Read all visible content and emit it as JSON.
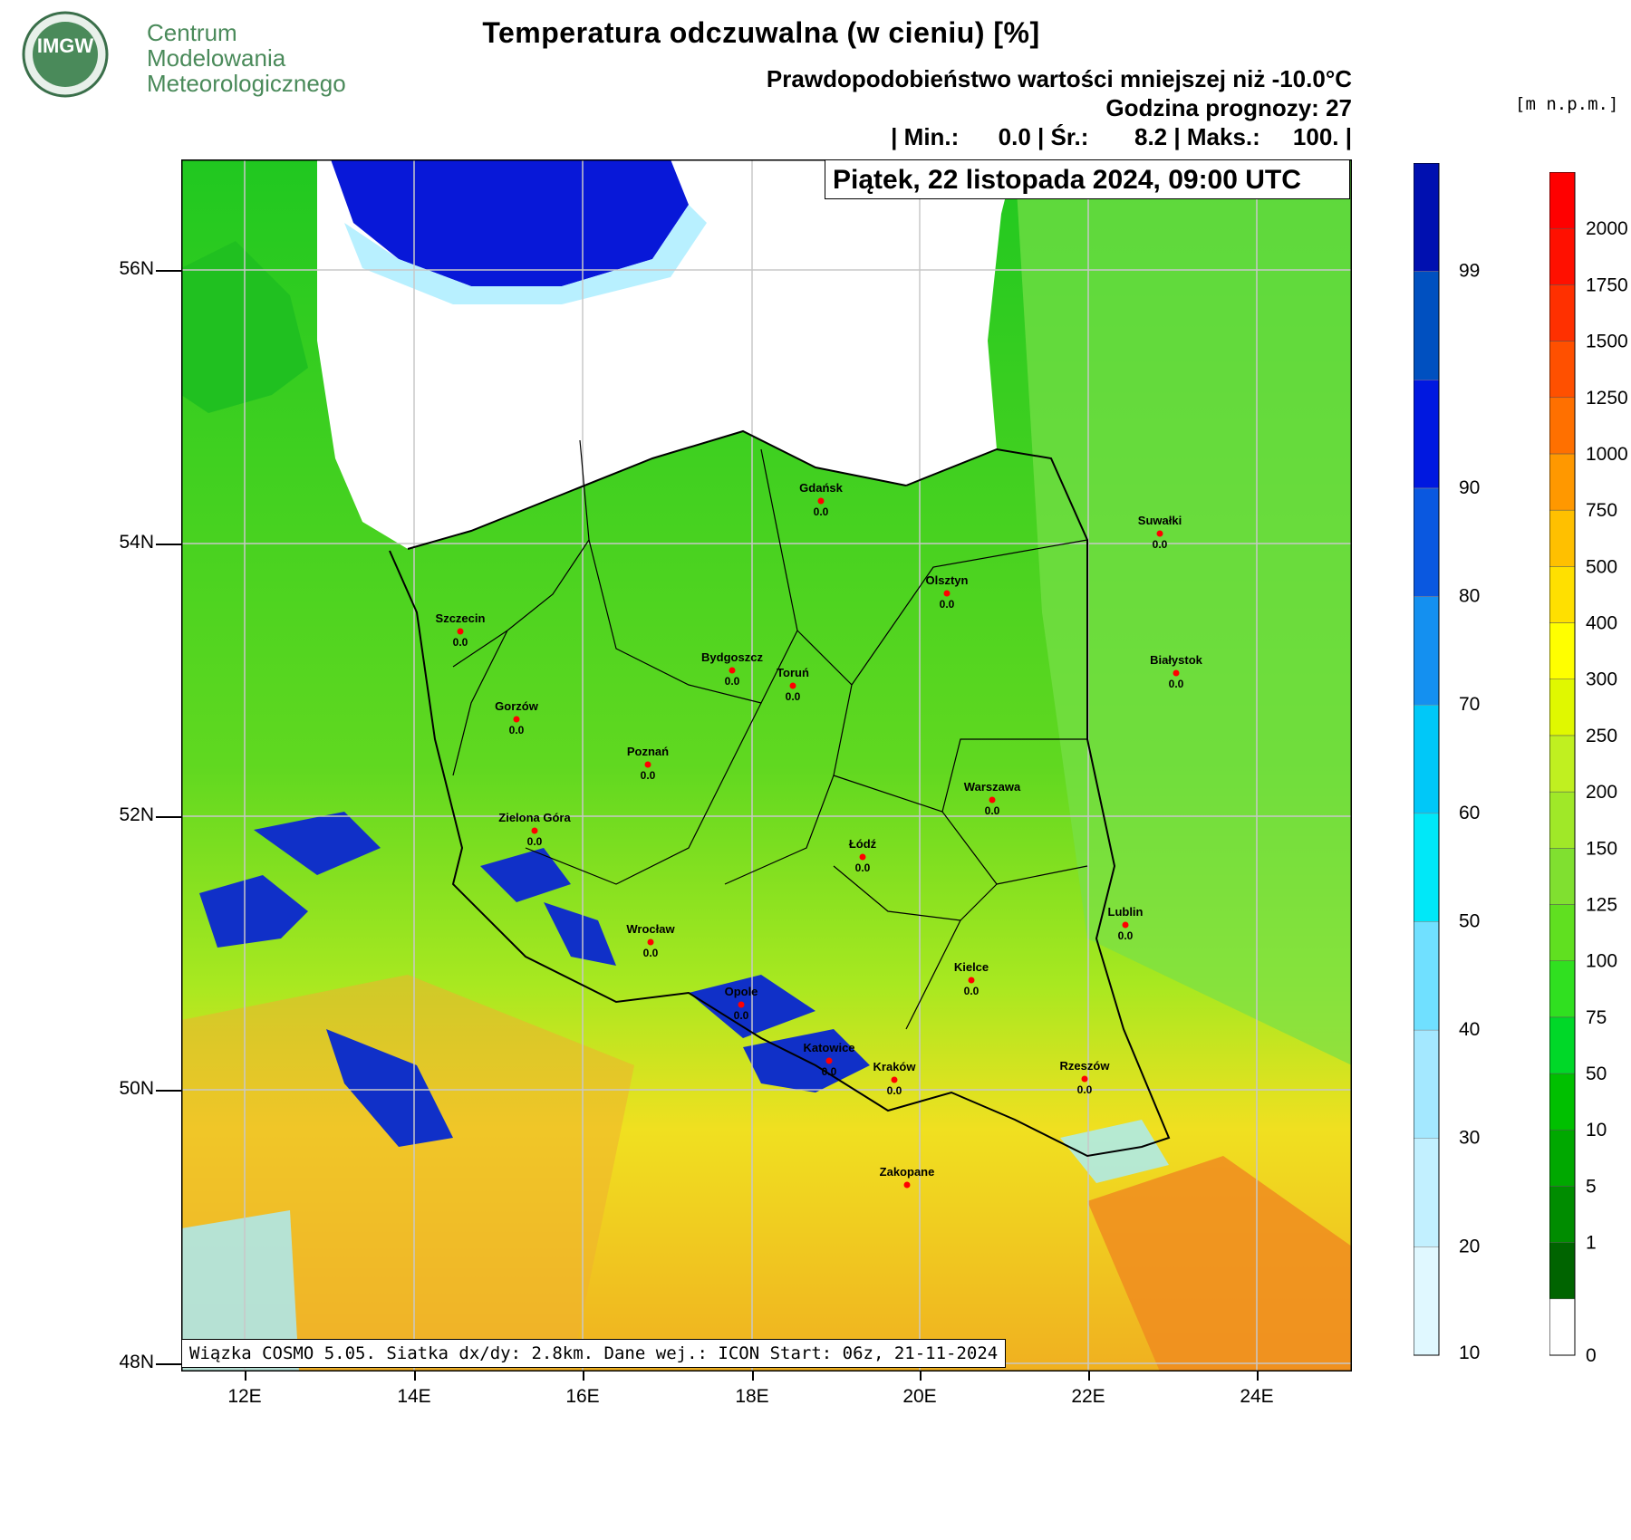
{
  "logo": {
    "badge": "IMGW",
    "line1": "Centrum",
    "line2": "Modelowania",
    "line3": "Meteorologicznego"
  },
  "header": {
    "title": "Temperatura odczuwalna (w cieniu) [%]",
    "subtitle": "Prawdopodobieństwo wartości mniejszej niż -10.0°C",
    "hour": "Godzina prognozy: 27",
    "stats": "| Min.:      0.0 | Śr.:       8.2 | Maks.:     100. |",
    "date": "Piątek, 22 listopada 2024, 09:00 UTC",
    "units": "[m n.p.m.]"
  },
  "footer": {
    "text": "Wiązka COSMO 5.05. Siatka dx/dy: 2.8km. Dane wej.: ICON Start: 06z, 21-11-2024"
  },
  "axes": {
    "lat_labels": [
      "56N",
      "54N",
      "52N",
      "50N",
      "48N"
    ],
    "lon_labels": [
      "12E",
      "14E",
      "16E",
      "18E",
      "20E",
      "22E",
      "24E"
    ]
  },
  "colorbar_prob": {
    "labels": [
      "10",
      "20",
      "30",
      "40",
      "50",
      "60",
      "70",
      "80",
      "90",
      "99"
    ],
    "colors": [
      "#e0f8ff",
      "#c2f0ff",
      "#a4e8ff",
      "#70e0ff",
      "#00e8f8",
      "#00c8f8",
      "#1490f0",
      "#0a58e0",
      "#0018e0",
      "#0050c0",
      "#0010b0"
    ]
  },
  "colorbar_elev": {
    "labels": [
      "0",
      "1",
      "5",
      "10",
      "50",
      "75",
      "100",
      "125",
      "150",
      "200",
      "250",
      "300",
      "400",
      "500",
      "750",
      "1000",
      "1250",
      "1500",
      "1750",
      "2000"
    ],
    "colors": [
      "#ffffff",
      "#006400",
      "#008c00",
      "#00a800",
      "#00c000",
      "#00d828",
      "#30e020",
      "#60e020",
      "#80e030",
      "#a0e828",
      "#c0f020",
      "#e0f800",
      "#ffff00",
      "#ffe000",
      "#ffc000",
      "#ff9800",
      "#ff7000",
      "#ff5000",
      "#ff3000",
      "#ff1000",
      "#ff0000"
    ]
  },
  "cities": [
    {
      "name": "Gdańsk",
      "value": "0.0"
    },
    {
      "name": "Suwałki",
      "value": "0.0"
    },
    {
      "name": "Olsztyn",
      "value": "0.0"
    },
    {
      "name": "Szczecin",
      "value": "0.0"
    },
    {
      "name": "Bydgoszcz",
      "value": "0.0"
    },
    {
      "name": "Toruń",
      "value": "0.0"
    },
    {
      "name": "Białystok",
      "value": "0.0"
    },
    {
      "name": "Gorzów",
      "value": "0.0"
    },
    {
      "name": "Poznań",
      "value": "0.0"
    },
    {
      "name": "Warszawa",
      "value": "0.0"
    },
    {
      "name": "Zielona Góra",
      "value": "0.0"
    },
    {
      "name": "Łódź",
      "value": "0.0"
    },
    {
      "name": "Lublin",
      "value": "0.0"
    },
    {
      "name": "Wrocław",
      "value": "0.0"
    },
    {
      "name": "Kielce",
      "value": "0.0"
    },
    {
      "name": "Opole",
      "value": "0.0"
    },
    {
      "name": "Katowice",
      "value": "0.0"
    },
    {
      "name": "Kraków",
      "value": "0.0"
    },
    {
      "name": "Rzeszów",
      "value": "0.0"
    },
    {
      "name": "Zakopane",
      "value": ""
    }
  ]
}
